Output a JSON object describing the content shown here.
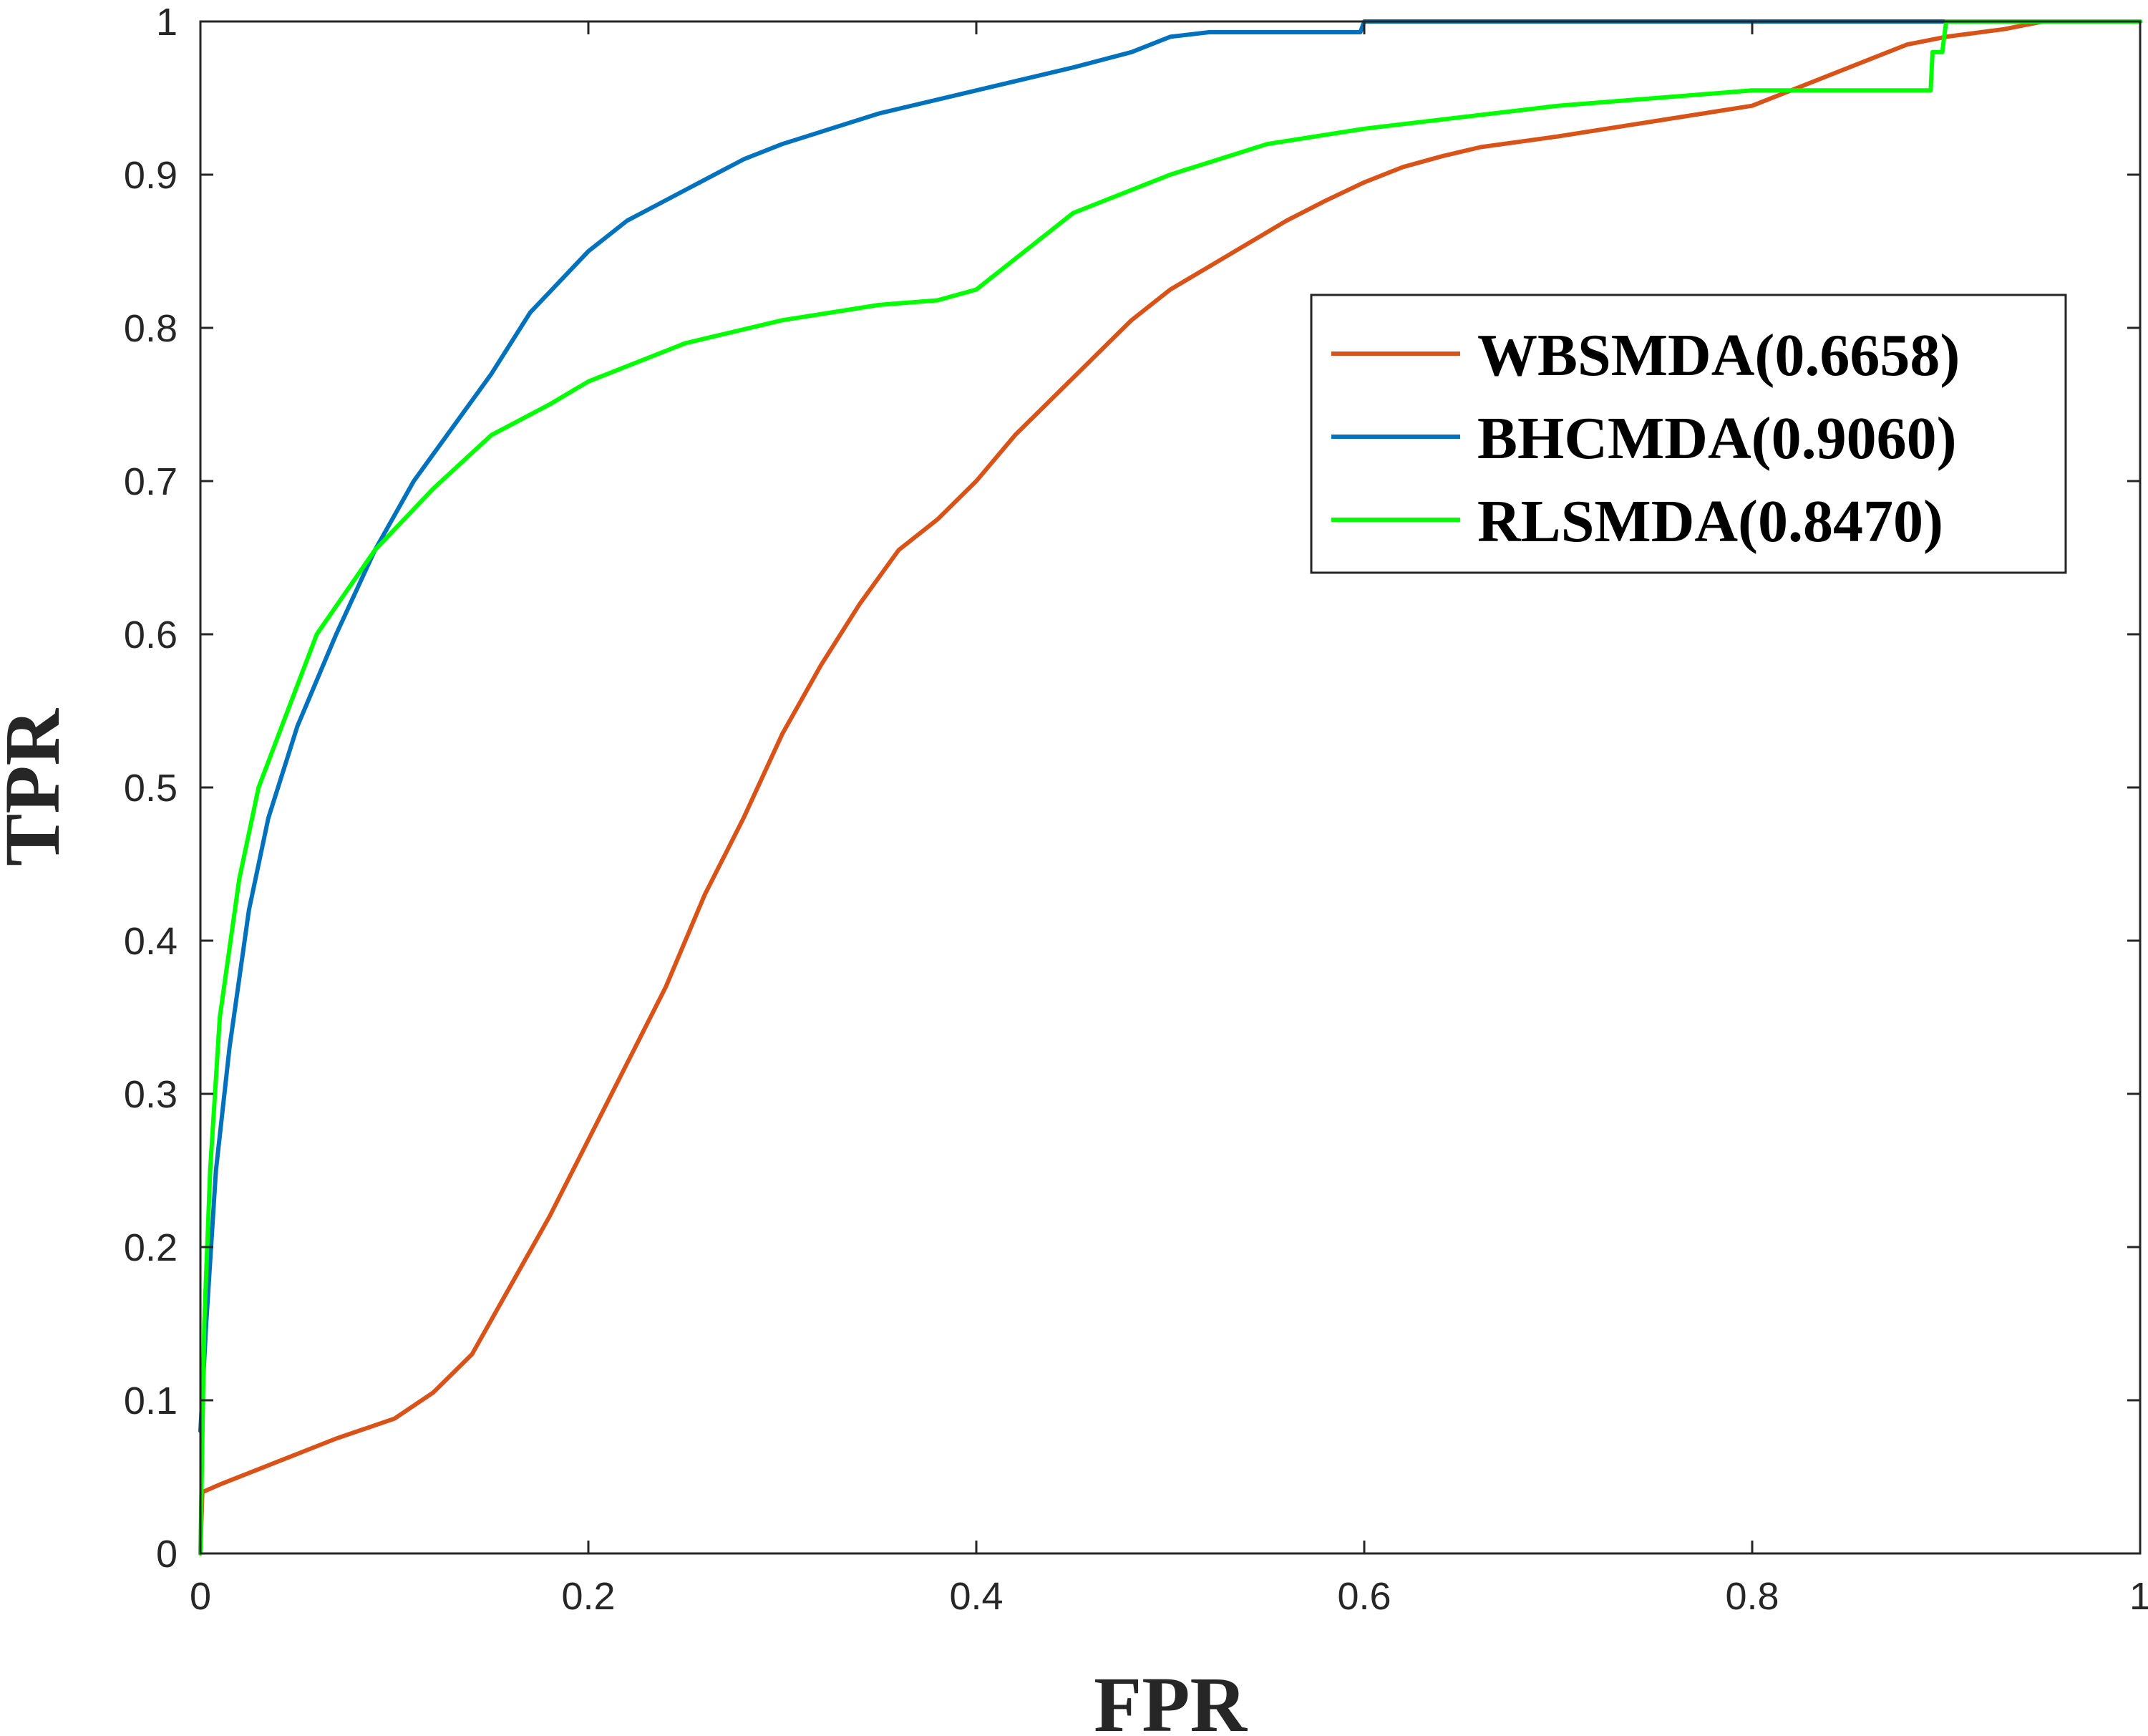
{
  "chart_data": {
    "type": "line",
    "title": "",
    "xlabel": "FPR",
    "ylabel": "TPR",
    "xlim": [
      0,
      1
    ],
    "ylim": [
      0,
      1
    ],
    "xticks": [
      "0",
      "0.2",
      "0.4",
      "0.6",
      "0.8",
      "1"
    ],
    "yticks": [
      "0",
      "0.1",
      "0.2",
      "0.3",
      "0.4",
      "0.5",
      "0.6",
      "0.7",
      "0.8",
      "0.9",
      "1"
    ],
    "grid": false,
    "legend_position": "top-right",
    "series": [
      {
        "name": "WBSMDA(0.6658)",
        "color": "#D95319",
        "points": [
          [
            0,
            0
          ],
          [
            0.001,
            0.04
          ],
          [
            0.01,
            0.045
          ],
          [
            0.03,
            0.055
          ],
          [
            0.05,
            0.065
          ],
          [
            0.07,
            0.075
          ],
          [
            0.1,
            0.088
          ],
          [
            0.12,
            0.105
          ],
          [
            0.14,
            0.13
          ],
          [
            0.16,
            0.175
          ],
          [
            0.18,
            0.22
          ],
          [
            0.2,
            0.27
          ],
          [
            0.22,
            0.32
          ],
          [
            0.24,
            0.37
          ],
          [
            0.26,
            0.43
          ],
          [
            0.28,
            0.48
          ],
          [
            0.3,
            0.535
          ],
          [
            0.32,
            0.58
          ],
          [
            0.34,
            0.62
          ],
          [
            0.36,
            0.655
          ],
          [
            0.38,
            0.675
          ],
          [
            0.4,
            0.7
          ],
          [
            0.42,
            0.73
          ],
          [
            0.44,
            0.755
          ],
          [
            0.46,
            0.78
          ],
          [
            0.48,
            0.805
          ],
          [
            0.5,
            0.825
          ],
          [
            0.52,
            0.84
          ],
          [
            0.54,
            0.855
          ],
          [
            0.56,
            0.87
          ],
          [
            0.58,
            0.883
          ],
          [
            0.6,
            0.895
          ],
          [
            0.62,
            0.905
          ],
          [
            0.64,
            0.912
          ],
          [
            0.66,
            0.918
          ],
          [
            0.7,
            0.925
          ],
          [
            0.75,
            0.935
          ],
          [
            0.8,
            0.945
          ],
          [
            0.82,
            0.955
          ],
          [
            0.85,
            0.97
          ],
          [
            0.88,
            0.985
          ],
          [
            0.9,
            0.99
          ],
          [
            0.93,
            0.995
          ],
          [
            0.95,
            1
          ],
          [
            1,
            1
          ]
        ]
      },
      {
        "name": "BHCMDA(0.9060)",
        "color": "#0072BD",
        "points": [
          [
            0,
            0.08
          ],
          [
            0.003,
            0.15
          ],
          [
            0.008,
            0.25
          ],
          [
            0.015,
            0.33
          ],
          [
            0.025,
            0.42
          ],
          [
            0.035,
            0.48
          ],
          [
            0.05,
            0.54
          ],
          [
            0.07,
            0.6
          ],
          [
            0.09,
            0.655
          ],
          [
            0.11,
            0.7
          ],
          [
            0.13,
            0.735
          ],
          [
            0.15,
            0.77
          ],
          [
            0.17,
            0.81
          ],
          [
            0.2,
            0.85
          ],
          [
            0.22,
            0.87
          ],
          [
            0.25,
            0.89
          ],
          [
            0.28,
            0.91
          ],
          [
            0.3,
            0.92
          ],
          [
            0.35,
            0.94
          ],
          [
            0.4,
            0.955
          ],
          [
            0.45,
            0.97
          ],
          [
            0.48,
            0.98
          ],
          [
            0.5,
            0.99
          ],
          [
            0.52,
            0.993
          ],
          [
            0.598,
            0.993
          ],
          [
            0.6,
            1
          ],
          [
            1,
            1
          ]
        ]
      },
      {
        "name": "RLSMDA(0.8470)",
        "color": "#00FF00",
        "points": [
          [
            0,
            0
          ],
          [
            0.002,
            0.15
          ],
          [
            0.005,
            0.25
          ],
          [
            0.01,
            0.35
          ],
          [
            0.02,
            0.44
          ],
          [
            0.03,
            0.5
          ],
          [
            0.045,
            0.55
          ],
          [
            0.06,
            0.6
          ],
          [
            0.09,
            0.655
          ],
          [
            0.12,
            0.695
          ],
          [
            0.15,
            0.73
          ],
          [
            0.18,
            0.75
          ],
          [
            0.2,
            0.765
          ],
          [
            0.25,
            0.79
          ],
          [
            0.3,
            0.805
          ],
          [
            0.35,
            0.815
          ],
          [
            0.38,
            0.818
          ],
          [
            0.4,
            0.825
          ],
          [
            0.42,
            0.845
          ],
          [
            0.45,
            0.875
          ],
          [
            0.5,
            0.9
          ],
          [
            0.55,
            0.92
          ],
          [
            0.6,
            0.93
          ],
          [
            0.7,
            0.945
          ],
          [
            0.8,
            0.955
          ],
          [
            0.82,
            0.955
          ],
          [
            0.892,
            0.955
          ],
          [
            0.893,
            0.98
          ],
          [
            0.898,
            0.98
          ],
          [
            0.9,
            1
          ],
          [
            1,
            1
          ]
        ]
      }
    ]
  }
}
